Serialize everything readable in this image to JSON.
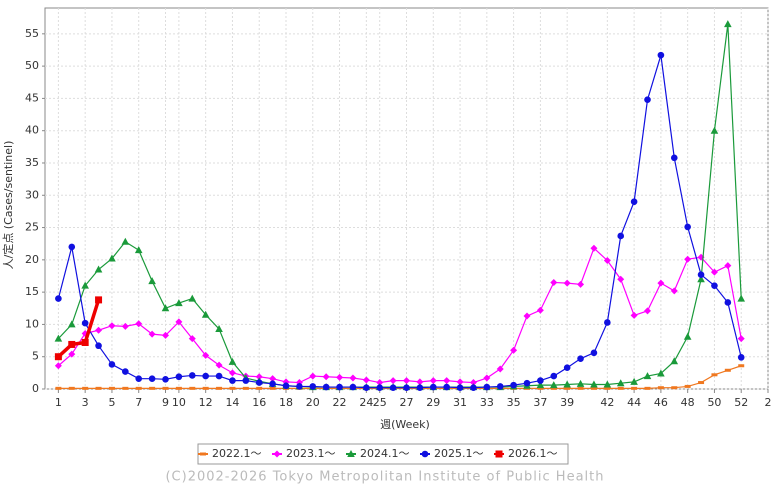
{
  "chart_data": {
    "type": "line",
    "x_label": "週(Week)",
    "y_label": "人/定点 (Cases/sentinel)",
    "footer": "(C)2002-2026 Tokyo Metropolitan Institute of Public Health",
    "x": [
      1,
      2,
      3,
      4,
      5,
      6,
      7,
      8,
      9,
      10,
      11,
      12,
      13,
      14,
      15,
      16,
      17,
      18,
      19,
      20,
      21,
      22,
      23,
      24,
      25,
      26,
      27,
      28,
      29,
      30,
      31,
      32,
      33,
      34,
      35,
      36,
      37,
      38,
      39,
      40,
      41,
      42,
      43,
      44,
      45,
      46,
      47,
      48,
      49,
      50,
      51,
      52
    ],
    "xlim": [
      0,
      54
    ],
    "xticks": [
      1,
      3,
      5,
      7,
      9,
      10,
      12,
      14,
      16,
      18,
      20,
      22,
      24,
      25,
      27,
      29,
      31,
      33,
      35,
      37,
      39,
      42,
      44,
      46,
      48,
      50,
      52,
      {
        "value": 54,
        "label": "2"
      }
    ],
    "ylim": [
      0,
      59
    ],
    "yticks": [
      0,
      5,
      10,
      15,
      20,
      25,
      30,
      35,
      40,
      45,
      50,
      55
    ],
    "grid": true,
    "legend": "bottom",
    "series": [
      {
        "name": "2022.1～",
        "color": "#f07820",
        "marker": "dash",
        "values": [
          0.1,
          0.1,
          0.1,
          0.1,
          0.1,
          0.1,
          0.1,
          0.1,
          0.1,
          0.1,
          0.1,
          0.1,
          0.1,
          0.1,
          0.1,
          0.1,
          0.1,
          0.1,
          0.1,
          0.1,
          0.1,
          0.1,
          0.1,
          0.1,
          0.1,
          0.1,
          0.1,
          0.1,
          0.1,
          0.1,
          0.1,
          0.1,
          0.1,
          0.1,
          0.1,
          0.1,
          0.1,
          0.1,
          0.1,
          0.1,
          0.1,
          0.1,
          0.1,
          0.1,
          0.1,
          0.2,
          0.2,
          0.4,
          1.0,
          2.2,
          2.9,
          3.6
        ]
      },
      {
        "name": "2023.1～",
        "color": "#ff00ff",
        "marker": "diamond",
        "values": [
          3.6,
          5.4,
          8.6,
          9.1,
          9.8,
          9.7,
          10.1,
          8.5,
          8.3,
          10.4,
          7.8,
          5.2,
          3.7,
          2.5,
          2.0,
          1.9,
          1.6,
          1.1,
          1.0,
          2.0,
          1.9,
          1.8,
          1.7,
          1.4,
          1.0,
          1.3,
          1.3,
          1.1,
          1.3,
          1.3,
          1.1,
          1.0,
          1.7,
          3.1,
          6.0,
          11.3,
          12.2,
          16.5,
          16.4,
          16.2,
          21.8,
          19.9,
          17.0,
          11.4,
          12.1,
          16.4,
          15.2,
          20.1,
          20.4,
          18.1,
          19.1,
          7.8
        ]
      },
      {
        "name": "2024.1～",
        "color": "#1a9a3a",
        "marker": "triangle",
        "values": [
          7.8,
          10.0,
          16.0,
          18.5,
          20.2,
          22.8,
          21.5,
          16.7,
          12.5,
          13.3,
          14.0,
          11.5,
          9.3,
          4.2,
          1.7,
          1.2,
          0.8,
          0.5,
          0.4,
          0.3,
          0.3,
          0.3,
          0.3,
          0.3,
          0.3,
          0.3,
          0.3,
          0.3,
          0.3,
          0.3,
          0.3,
          0.3,
          0.3,
          0.3,
          0.4,
          0.5,
          0.6,
          0.6,
          0.7,
          0.8,
          0.7,
          0.7,
          0.9,
          1.1,
          2.0,
          2.4,
          4.3,
          8.1,
          17.0,
          40.0,
          56.5,
          14.0
        ]
      },
      {
        "name": "2025.1～",
        "color": "#1010e0",
        "marker": "circle",
        "values": [
          14.0,
          22.0,
          10.2,
          6.7,
          3.8,
          2.7,
          1.6,
          1.6,
          1.5,
          1.9,
          2.1,
          2.0,
          2.0,
          1.3,
          1.3,
          1.0,
          0.8,
          0.5,
          0.4,
          0.4,
          0.3,
          0.3,
          0.3,
          0.2,
          0.2,
          0.2,
          0.2,
          0.2,
          0.3,
          0.3,
          0.2,
          0.2,
          0.3,
          0.4,
          0.6,
          0.9,
          1.3,
          2.0,
          3.3,
          4.7,
          5.6,
          10.3,
          23.7,
          29.0,
          44.8,
          51.7,
          35.8,
          25.1,
          17.7,
          16.0,
          13.4,
          4.9
        ]
      },
      {
        "name": "2026.1～",
        "color": "#ee0000",
        "marker": "square",
        "thick": true,
        "values": [
          5.0,
          6.9,
          7.2,
          13.8,
          null,
          null,
          null,
          null,
          null,
          null,
          null,
          null,
          null,
          null,
          null,
          null,
          null,
          null,
          null,
          null,
          null,
          null,
          null,
          null,
          null,
          null,
          null,
          null,
          null,
          null,
          null,
          null,
          null,
          null,
          null,
          null,
          null,
          null,
          null,
          null,
          null,
          null,
          null,
          null,
          null,
          null,
          null,
          null,
          null,
          null,
          null,
          null
        ]
      }
    ]
  }
}
